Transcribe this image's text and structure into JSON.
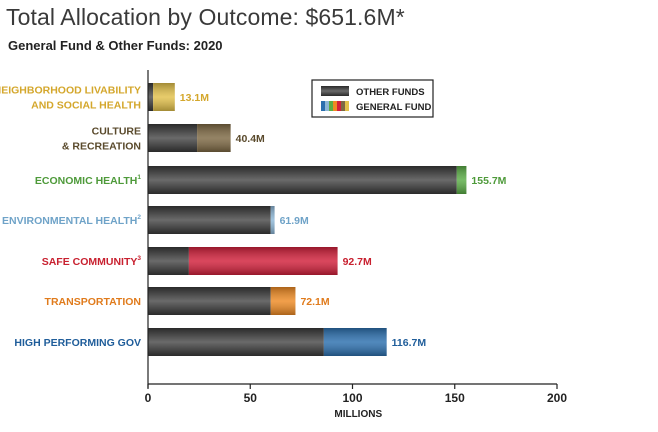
{
  "title": "Total Allocation by Outcome: $651.6M*",
  "subtitle": "General Fund & Other Funds: 2020",
  "colors": {
    "other_funds": "#4d4d4d",
    "livability": "#e2c04a",
    "culture": "#7d6843",
    "economic": "#5aac45",
    "environmental": "#8cb6d6",
    "safe": "#d11f3a",
    "transportation": "#ee8a23",
    "government": "#2b6fae",
    "axis": "#222222"
  },
  "chart_data": {
    "type": "bar",
    "orientation": "horizontal",
    "stacked": true,
    "xlabel": "MILLIONS",
    "xlim": [
      0,
      200
    ],
    "xticks": [
      0,
      50,
      100,
      150,
      200
    ],
    "legend": {
      "placement": "top-right",
      "entries": [
        "OTHER FUNDS",
        "GENERAL FUND"
      ]
    },
    "categories": [
      {
        "lines": [
          "NEIGHBORHOOD LIVABILITY",
          "AND SOCIAL HEALTH"
        ],
        "sup": "",
        "color": "#e2c04a",
        "label_color": "#d4a72c",
        "other": 2.5,
        "general": 10.6,
        "total_label": "13.1M"
      },
      {
        "lines": [
          "CULTURE",
          "& RECREATION"
        ],
        "sup": "",
        "color": "#7d6843",
        "label_color": "#5a4a2c",
        "other": 24.0,
        "general": 16.4,
        "total_label": "40.4M"
      },
      {
        "lines": [
          "ECONOMIC HEALTH"
        ],
        "sup": "1",
        "color": "#5aac45",
        "label_color": "#4e9a3a",
        "other": 151.0,
        "general": 4.7,
        "total_label": "155.7M"
      },
      {
        "lines": [
          "ENVIRONMENTAL HEALTH"
        ],
        "sup": "2",
        "color": "#8cb6d6",
        "label_color": "#6fa3c8",
        "other": 60.0,
        "general": 1.9,
        "total_label": "61.9M"
      },
      {
        "lines": [
          "SAFE COMMUNITY"
        ],
        "sup": "3",
        "color": "#d11f3a",
        "label_color": "#c8202f",
        "other": 20.0,
        "general": 72.7,
        "total_label": "92.7M"
      },
      {
        "lines": [
          "TRANSPORTATION"
        ],
        "sup": "",
        "color": "#ee8a23",
        "label_color": "#e07b1c",
        "other": 60.0,
        "general": 12.1,
        "total_label": "72.1M"
      },
      {
        "lines": [
          "HIGH PERFORMING GOV"
        ],
        "sup": "",
        "color": "#2b6fae",
        "label_color": "#1f5d9a",
        "other": 86.0,
        "general": 30.7,
        "total_label": "116.7M"
      }
    ]
  }
}
